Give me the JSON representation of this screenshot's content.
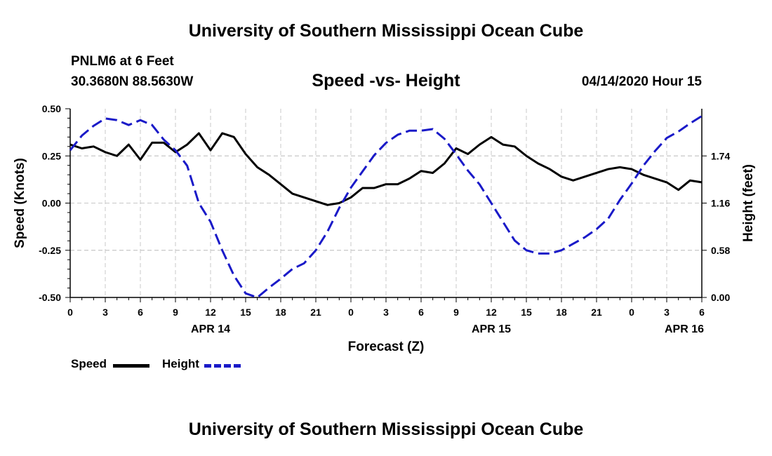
{
  "header": {
    "title": "University of Southern Mississippi Ocean Cube",
    "station": "PNLM6 at 6 Feet",
    "coordinates": "30.3680N 88.5630W",
    "chart_title": "Speed -vs- Height",
    "datetime": "04/14/2020 Hour 15"
  },
  "legend": {
    "speed_label": "Speed",
    "height_label": "Height"
  },
  "footer": {
    "title": "University of Southern Mississippi Ocean Cube"
  },
  "colors": {
    "speed": "#000000",
    "height": "#1a1ac8",
    "grid": "#c8c8c8"
  },
  "chart_data": {
    "type": "line",
    "title": "Speed -vs- Height",
    "xlabel": "Forecast (Z)",
    "ylabel": "Speed (Knots)",
    "y2label": "Height (feet)",
    "xlim": [
      0,
      54
    ],
    "ylim": [
      -0.5,
      0.5
    ],
    "y2lim": [
      0.0,
      2.32
    ],
    "x_tick_labels": [
      "0",
      "3",
      "6",
      "9",
      "12",
      "15",
      "18",
      "21",
      "0",
      "3",
      "6",
      "9",
      "12",
      "15",
      "18",
      "21",
      "0",
      "3",
      "6"
    ],
    "date_labels": [
      {
        "x": 12,
        "label": "APR 14"
      },
      {
        "x": 36,
        "label": "APR 15"
      },
      {
        "x": 52.5,
        "label": "APR 16"
      }
    ],
    "y_ticks": [
      -0.5,
      -0.25,
      0.0,
      0.25,
      0.5
    ],
    "y_tick_labels": [
      "-0.50",
      "-0.25",
      "0.00",
      "0.25",
      "0.50"
    ],
    "y2_ticks": [
      0.0,
      0.58,
      1.16,
      1.74
    ],
    "y2_tick_labels": [
      "0.00",
      "0.58",
      "1.16",
      "1.74"
    ],
    "grid": true,
    "series": [
      {
        "name": "Speed",
        "axis": "left",
        "style": "solid",
        "x": [
          0,
          1,
          2,
          3,
          4,
          5,
          6,
          7,
          8,
          9,
          10,
          11,
          12,
          13,
          14,
          15,
          16,
          17,
          18,
          19,
          20,
          21,
          22,
          23,
          24,
          25,
          26,
          27,
          28,
          29,
          30,
          31,
          32,
          33,
          34,
          35,
          36,
          37,
          38,
          39,
          40,
          41,
          42,
          43,
          44,
          45,
          46,
          47,
          48,
          49,
          50,
          51,
          52,
          53,
          54
        ],
        "values": [
          0.31,
          0.29,
          0.3,
          0.27,
          0.25,
          0.31,
          0.23,
          0.32,
          0.32,
          0.27,
          0.31,
          0.37,
          0.28,
          0.37,
          0.35,
          0.26,
          0.19,
          0.15,
          0.1,
          0.05,
          0.03,
          0.01,
          -0.01,
          0.0,
          0.03,
          0.08,
          0.08,
          0.1,
          0.1,
          0.13,
          0.17,
          0.16,
          0.21,
          0.29,
          0.26,
          0.31,
          0.35,
          0.31,
          0.3,
          0.25,
          0.21,
          0.18,
          0.14,
          0.12,
          0.14,
          0.16,
          0.18,
          0.19,
          0.18,
          0.15,
          0.13,
          0.11,
          0.07,
          0.12,
          0.11
        ]
      },
      {
        "name": "Height",
        "axis": "right",
        "style": "dashed",
        "x": [
          0,
          1,
          2,
          3,
          4,
          5,
          6,
          7,
          8,
          9,
          10,
          11,
          12,
          13,
          14,
          15,
          16,
          17,
          18,
          19,
          20,
          21,
          22,
          23,
          24,
          25,
          26,
          27,
          28,
          29,
          30,
          31,
          32,
          33,
          34,
          35,
          36,
          37,
          38,
          39,
          40,
          41,
          42,
          43,
          44,
          45,
          46,
          47,
          48,
          49,
          50,
          51,
          52,
          53,
          54
        ],
        "values": [
          1.81,
          1.99,
          2.11,
          2.2,
          2.18,
          2.12,
          2.18,
          2.12,
          1.94,
          1.81,
          1.62,
          1.16,
          0.93,
          0.58,
          0.27,
          0.05,
          0.0,
          0.12,
          0.23,
          0.35,
          0.42,
          0.58,
          0.81,
          1.1,
          1.35,
          1.55,
          1.75,
          1.9,
          2.0,
          2.05,
          2.05,
          2.07,
          1.95,
          1.76,
          1.56,
          1.39,
          1.16,
          0.93,
          0.7,
          0.58,
          0.54,
          0.54,
          0.58,
          0.66,
          0.74,
          0.84,
          0.97,
          1.2,
          1.4,
          1.62,
          1.8,
          1.96,
          2.04,
          2.14,
          2.23
        ]
      }
    ]
  }
}
